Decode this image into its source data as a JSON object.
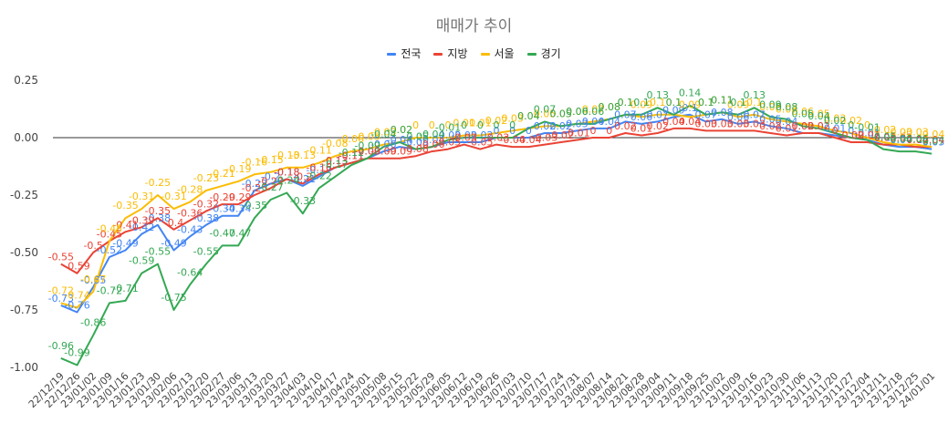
{
  "chart_data": {
    "type": "line",
    "title": "매매가 추이",
    "xlabel": "",
    "ylabel": "",
    "ylim": [
      -1.0,
      0.25
    ],
    "yticks": [
      "0.25",
      "0.00",
      "-0.25",
      "-0.50",
      "-0.75",
      "-1.00"
    ],
    "grid": false,
    "legend_position": "top",
    "categories": [
      "22/12/19",
      "22/12/26",
      "23/01/02",
      "23/01/09",
      "23/01/16",
      "23/01/23",
      "23/01/30",
      "23/02/06",
      "23/02/13",
      "23/02/20",
      "23/02/27",
      "23/03/06",
      "23/03/13",
      "23/03/20",
      "23/03/27",
      "23/04/03",
      "23/04/10",
      "23/04/17",
      "23/04/24",
      "23/05/01",
      "23/05/08",
      "23/05/15",
      "23/05/22",
      "23/05/29",
      "23/06/05",
      "23/06/12",
      "23/06/19",
      "23/06/26",
      "23/07/03",
      "23/07/10",
      "23/07/17",
      "23/07/24",
      "23/07/31",
      "23/08/07",
      "23/08/14",
      "23/08/21",
      "23/08/28",
      "23/09/04",
      "23/09/11",
      "23/09/18",
      "23/09/25",
      "23/10/02",
      "23/10/09",
      "23/10/16",
      "23/10/23",
      "23/10/30",
      "23/11/06",
      "23/11/13",
      "23/11/20",
      "23/11/27",
      "23/12/04",
      "23/12/11",
      "23/12/18",
      "23/12/25",
      "24/01/01"
    ],
    "series": [
      {
        "name": "전국",
        "color": "#4285f4",
        "values": [
          -0.73,
          -0.76,
          -0.65,
          -0.52,
          -0.49,
          -0.42,
          -0.38,
          -0.49,
          -0.43,
          -0.38,
          -0.34,
          -0.34,
          -0.23,
          -0.2,
          -0.18,
          -0.21,
          -0.17,
          -0.13,
          -0.11,
          -0.09,
          -0.06,
          -0.04,
          -0.05,
          -0.04,
          -0.02,
          -0.02,
          -0.02,
          0.0,
          0.0,
          0.0,
          0.02,
          0.02,
          0.03,
          0.04,
          0.04,
          0.07,
          0.06,
          0.07,
          0.09,
          0.1,
          0.07,
          0.08,
          0.06,
          0.07,
          0.05,
          0.04,
          0.02,
          0.02,
          0.01,
          0.0,
          -0.01,
          -0.03,
          -0.04,
          -0.04,
          -0.05
        ]
      },
      {
        "name": "지방",
        "color": "#ea4335",
        "values": [
          -0.55,
          -0.59,
          -0.5,
          -0.45,
          -0.41,
          -0.39,
          -0.35,
          -0.4,
          -0.36,
          -0.32,
          -0.29,
          -0.29,
          -0.25,
          -0.22,
          -0.18,
          -0.2,
          -0.16,
          -0.13,
          -0.11,
          -0.09,
          -0.09,
          -0.09,
          -0.08,
          -0.06,
          -0.05,
          -0.03,
          -0.05,
          -0.03,
          -0.04,
          -0.04,
          -0.03,
          -0.02,
          -0.01,
          0.0,
          0.0,
          0.02,
          0.01,
          0.02,
          0.04,
          0.04,
          0.03,
          0.03,
          0.03,
          0.03,
          0.02,
          0.01,
          0.02,
          0.02,
          0.0,
          -0.02,
          -0.02,
          -0.03,
          -0.03,
          -0.04,
          -0.04
        ]
      },
      {
        "name": "서울",
        "color": "#fbbc04",
        "values": [
          -0.72,
          -0.74,
          -0.67,
          -0.45,
          -0.35,
          -0.31,
          -0.25,
          -0.31,
          -0.28,
          -0.23,
          -0.21,
          -0.19,
          -0.16,
          -0.15,
          -0.13,
          -0.13,
          -0.11,
          -0.08,
          -0.06,
          -0.05,
          -0.03,
          -0.02,
          0.0,
          0.0,
          0.0,
          0.01,
          0.01,
          0.02,
          0.03,
          0.04,
          0.05,
          0.05,
          0.06,
          0.07,
          0.08,
          0.1,
          0.09,
          0.1,
          0.1,
          0.09,
          0.1,
          0.11,
          0.09,
          0.1,
          0.08,
          0.07,
          0.06,
          0.05,
          0.03,
          0.02,
          0.0,
          -0.02,
          -0.03,
          -0.03,
          -0.04
        ]
      },
      {
        "name": "경기",
        "color": "#34a853",
        "values": [
          -0.96,
          -0.99,
          -0.86,
          -0.72,
          -0.71,
          -0.59,
          -0.55,
          -0.75,
          -0.64,
          -0.55,
          -0.47,
          -0.47,
          -0.35,
          -0.27,
          -0.24,
          -0.33,
          -0.22,
          -0.17,
          -0.12,
          -0.09,
          -0.04,
          -0.02,
          -0.05,
          -0.04,
          -0.01,
          0.0,
          0.0,
          0.0,
          0.0,
          0.04,
          0.07,
          0.05,
          0.06,
          0.06,
          0.08,
          0.1,
          0.1,
          0.13,
          0.1,
          0.14,
          0.1,
          0.11,
          0.1,
          0.13,
          0.09,
          0.08,
          0.05,
          0.04,
          0.02,
          0.0,
          -0.01,
          -0.05,
          -0.06,
          -0.06,
          -0.07
        ]
      }
    ]
  }
}
